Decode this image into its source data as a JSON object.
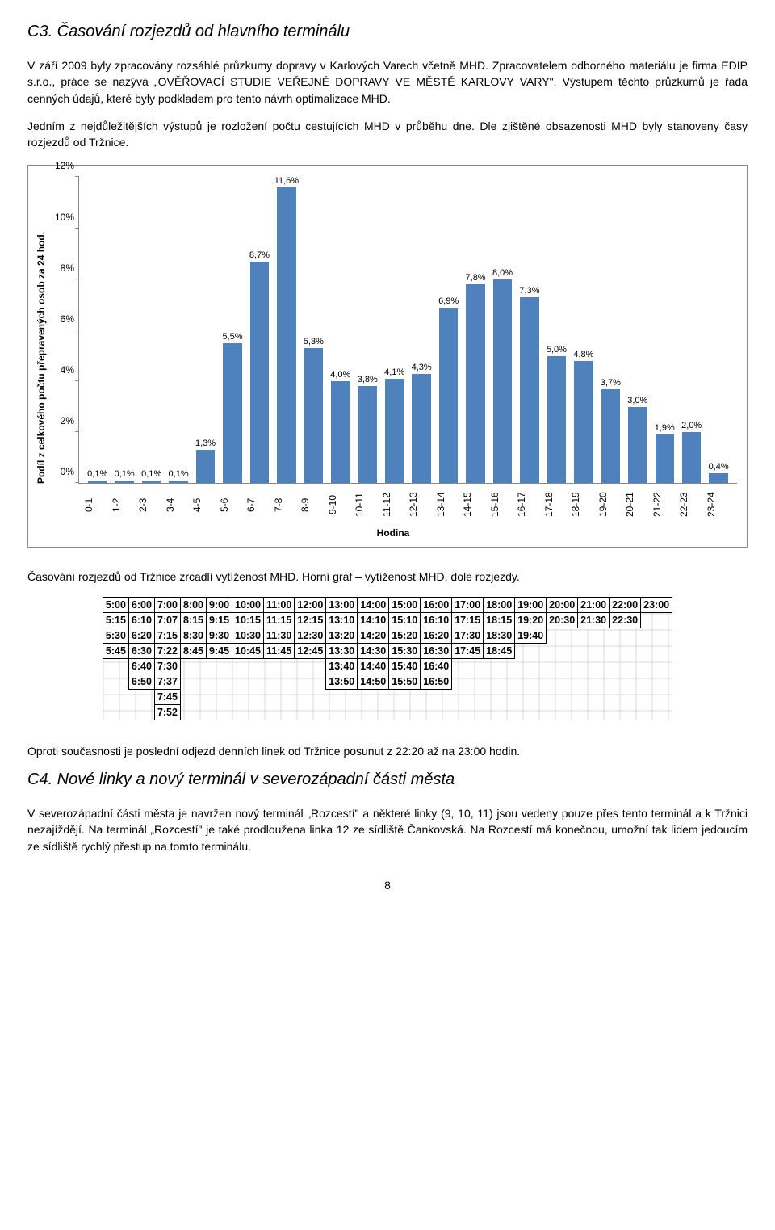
{
  "heading_c3": "C3. Časování rozjezdů od hlavního terminálu",
  "para1": "V září 2009 byly zpracovány rozsáhlé průzkumy dopravy v Karlových Varech včetně MHD. Zpracovatelem odborného materiálu je firma EDIP s.r.o., práce se nazývá „OVĚŘOVACÍ STUDIE VEŘEJNÉ DOPRAVY VE MĚSTĚ KARLOVY VARY\". Výstupem těchto průzkumů je řada cenných údajů, které byly podkladem pro tento návrh optimalizace MHD.",
  "para2": "Jedním z nejdůležitějších výstupů je rozložení počtu cestujících MHD v průběhu dne. Dle zjištěné obsazenosti MHD byly stanoveny časy rozjezdů od Tržnice.",
  "caption_mid": "Časování rozjezdů od Tržnice zrcadlí vytíženost MHD. Horní graf – vytíženost MHD, dole rozjezdy.",
  "para3": "Oproti současnosti je poslední odjezd denních linek od Tržnice posunut z 22:20 až na 23:00 hodin.",
  "heading_c4": "C4. Nové linky a nový terminál v severozápadní části města",
  "para4": "V severozápadní části města je navržen nový terminál „Rozcestí\" a některé linky (9, 10, 11) jsou vedeny pouze přes tento terminál a k Tržnici nezajíždějí. Na terminál „Rozcestí\" je také prodloužena linka 12 ze sídliště Čankovská. Na Rozcestí má konečnou, umožní tak lidem jedoucím ze sídliště rychlý přestup na tomto terminálu.",
  "page_number": "8",
  "chart": {
    "type": "bar",
    "ylabel": "Podíl z celkového počtu přepravených osob za 24 hod.",
    "xlabel": "Hodina",
    "bar_color": "#4f81bd",
    "axis_color": "#888888",
    "background": "#ffffff",
    "ylim_max": 12,
    "ytick_step": 2,
    "label_fontsize": 11,
    "categories": [
      "0-1",
      "1-2",
      "2-3",
      "3-4",
      "4-5",
      "5-6",
      "6-7",
      "7-8",
      "8-9",
      "9-10",
      "10-11",
      "11-12",
      "12-13",
      "13-14",
      "14-15",
      "15-16",
      "16-17",
      "17-18",
      "18-19",
      "19-20",
      "20-21",
      "21-22",
      "22-23",
      "23-24"
    ],
    "values": [
      0.1,
      0.1,
      0.1,
      0.1,
      1.3,
      5.5,
      8.7,
      11.6,
      5.3,
      4.0,
      3.8,
      4.1,
      4.3,
      6.9,
      7.8,
      8.0,
      7.3,
      5.0,
      4.8,
      3.7,
      3.0,
      1.9,
      2.0,
      0.4
    ],
    "value_labels": [
      "0,1%",
      "0,1%",
      "0,1%",
      "0,1%",
      "1,3%",
      "5,5%",
      "8,7%",
      "11,6%",
      "5,3%",
      "4,0%",
      "3,8%",
      "4,1%",
      "4,3%",
      "6,9%",
      "7,8%",
      "8,0%",
      "7,3%",
      "5,0%",
      "4,8%",
      "3,7%",
      "3,0%",
      "1,9%",
      "2,0%",
      "0,4%"
    ]
  },
  "schedule": {
    "rows": [
      [
        "5:00",
        "6:00",
        "7:00",
        "8:00",
        "9:00",
        "10:00",
        "11:00",
        "12:00",
        "13:00",
        "14:00",
        "15:00",
        "16:00",
        "17:00",
        "18:00",
        "19:00",
        "20:00",
        "21:00",
        "22:00",
        "23:00"
      ],
      [
        "5:15",
        "6:10",
        "7:07",
        "8:15",
        "9:15",
        "10:15",
        "11:15",
        "12:15",
        "13:10",
        "14:10",
        "15:10",
        "16:10",
        "17:15",
        "18:15",
        "19:20",
        "20:30",
        "21:30",
        "22:30",
        ""
      ],
      [
        "5:30",
        "6:20",
        "7:15",
        "8:30",
        "9:30",
        "10:30",
        "11:30",
        "12:30",
        "13:20",
        "14:20",
        "15:20",
        "16:20",
        "17:30",
        "18:30",
        "19:40",
        "",
        "",
        "",
        ""
      ],
      [
        "5:45",
        "6:30",
        "7:22",
        "8:45",
        "9:45",
        "10:45",
        "11:45",
        "12:45",
        "13:30",
        "14:30",
        "15:30",
        "16:30",
        "17:45",
        "18:45",
        "",
        "",
        "",
        "",
        ""
      ],
      [
        "",
        "6:40",
        "7:30",
        "",
        "",
        "",
        "",
        "",
        "13:40",
        "14:40",
        "15:40",
        "16:40",
        "",
        "",
        "",
        "",
        "",
        "",
        ""
      ],
      [
        "",
        "6:50",
        "7:37",
        "",
        "",
        "",
        "",
        "",
        "13:50",
        "14:50",
        "15:50",
        "16:50",
        "",
        "",
        "",
        "",
        "",
        "",
        ""
      ],
      [
        "",
        "",
        "7:45",
        "",
        "",
        "",
        "",
        "",
        "",
        "",
        "",
        "",
        "",
        "",
        "",
        "",
        "",
        "",
        ""
      ],
      [
        "",
        "",
        "7:52",
        "",
        "",
        "",
        "",
        "",
        "",
        "",
        "",
        "",
        "",
        "",
        "",
        "",
        "",
        "",
        ""
      ]
    ]
  }
}
